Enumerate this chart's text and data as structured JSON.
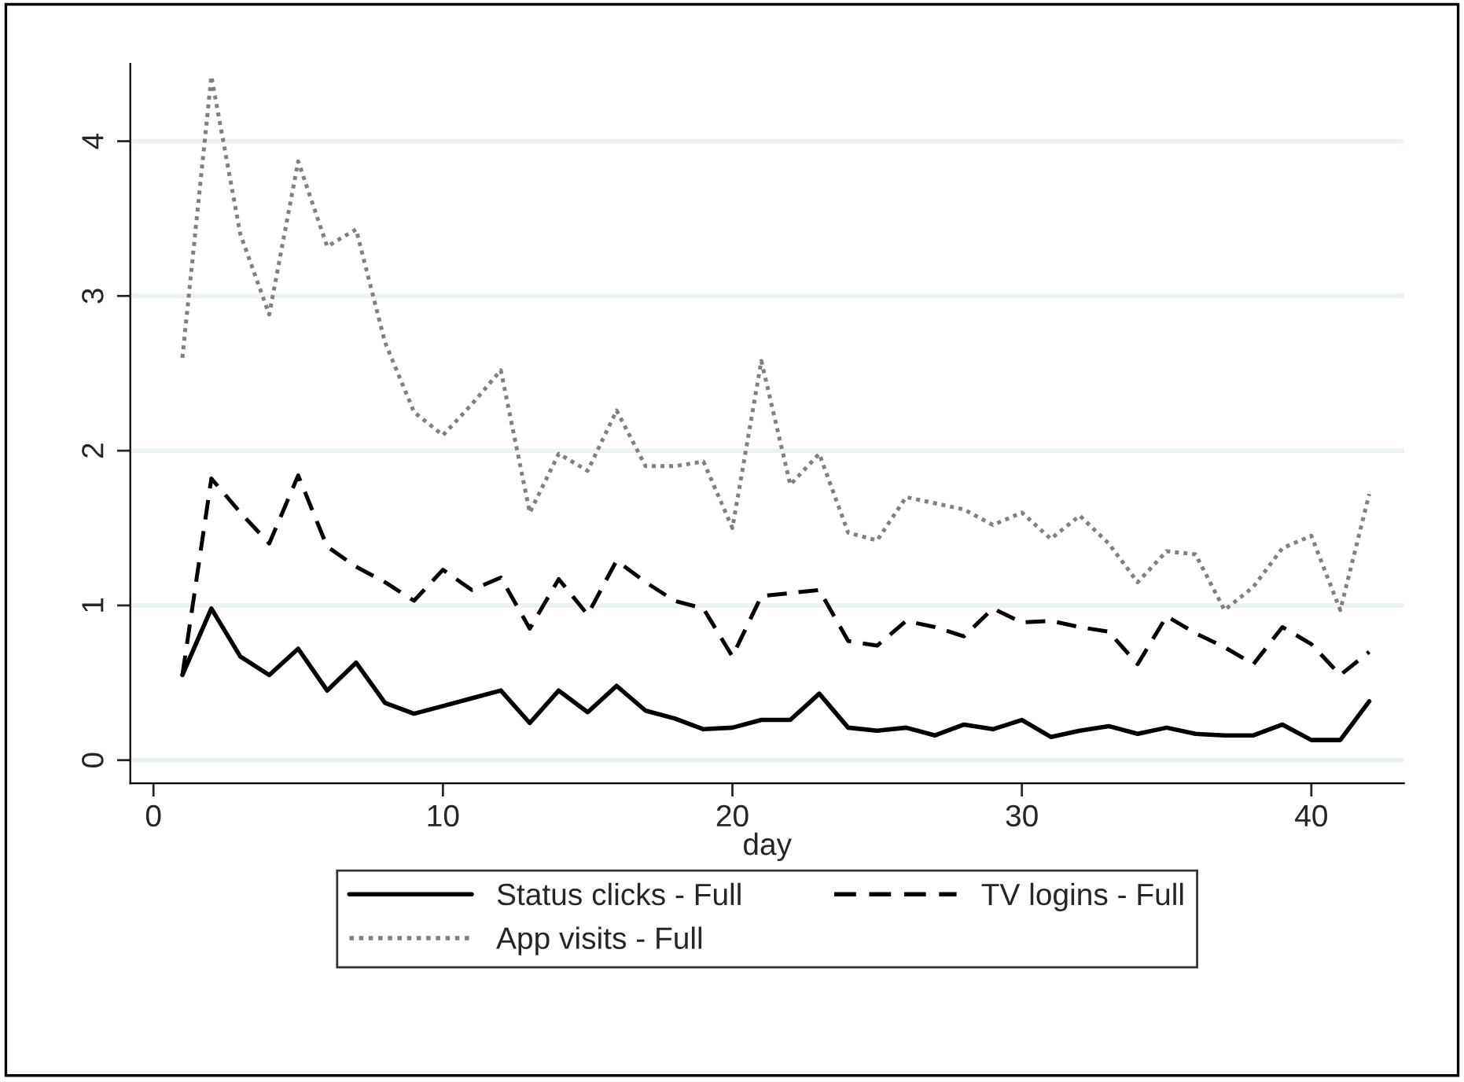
{
  "chart_data": {
    "type": "line",
    "xlabel": "day",
    "x": [
      1,
      2,
      3,
      4,
      5,
      6,
      7,
      8,
      9,
      10,
      11,
      12,
      13,
      14,
      15,
      16,
      17,
      18,
      19,
      20,
      21,
      22,
      23,
      24,
      25,
      26,
      27,
      28,
      29,
      30,
      31,
      32,
      33,
      34,
      35,
      36,
      37,
      38,
      39,
      40,
      41,
      42
    ],
    "series": [
      {
        "name": "Status clicks - Full",
        "color": "#000000",
        "line_style": "solid",
        "values": [
          0.55,
          0.98,
          0.67,
          0.55,
          0.72,
          0.45,
          0.63,
          0.37,
          0.3,
          0.35,
          0.4,
          0.45,
          0.24,
          0.45,
          0.31,
          0.48,
          0.32,
          0.27,
          0.2,
          0.21,
          0.26,
          0.26,
          0.43,
          0.21,
          0.19,
          0.21,
          0.16,
          0.23,
          0.2,
          0.26,
          0.15,
          0.19,
          0.22,
          0.17,
          0.21,
          0.17,
          0.16,
          0.16,
          0.23,
          0.13,
          0.13,
          0.38
        ]
      },
      {
        "name": "App visits - Full",
        "color": "#808080",
        "line_style": "dotted",
        "values": [
          2.6,
          4.42,
          3.4,
          2.88,
          3.87,
          3.32,
          3.43,
          2.7,
          2.25,
          2.1,
          2.3,
          2.52,
          1.6,
          1.98,
          1.87,
          2.26,
          1.9,
          1.9,
          1.93,
          1.5,
          2.58,
          1.78,
          1.98,
          1.47,
          1.42,
          1.7,
          1.66,
          1.62,
          1.52,
          1.6,
          1.43,
          1.58,
          1.4,
          1.15,
          1.35,
          1.33,
          0.97,
          1.12,
          1.37,
          1.45,
          0.97,
          1.72
        ]
      },
      {
        "name": "TV logins - Full",
        "color": "#000000",
        "line_style": "dashed",
        "values": [
          0.55,
          1.82,
          1.6,
          1.4,
          1.84,
          1.38,
          1.25,
          1.15,
          1.03,
          1.23,
          1.1,
          1.18,
          0.85,
          1.17,
          0.94,
          1.29,
          1.15,
          1.03,
          0.98,
          0.67,
          1.06,
          1.08,
          1.1,
          0.77,
          0.74,
          0.9,
          0.86,
          0.8,
          0.98,
          0.89,
          0.9,
          0.86,
          0.83,
          0.62,
          0.93,
          0.82,
          0.73,
          0.62,
          0.86,
          0.75,
          0.55,
          0.7
        ]
      }
    ],
    "xlim": [
      -0.8,
      43.2
    ],
    "xticks": [
      0,
      10,
      20,
      30,
      40
    ],
    "ylim": [
      -0.15,
      4.5
    ],
    "yticks": [
      0,
      1,
      2,
      3,
      4
    ],
    "grid": "y",
    "legend": "bottom"
  }
}
